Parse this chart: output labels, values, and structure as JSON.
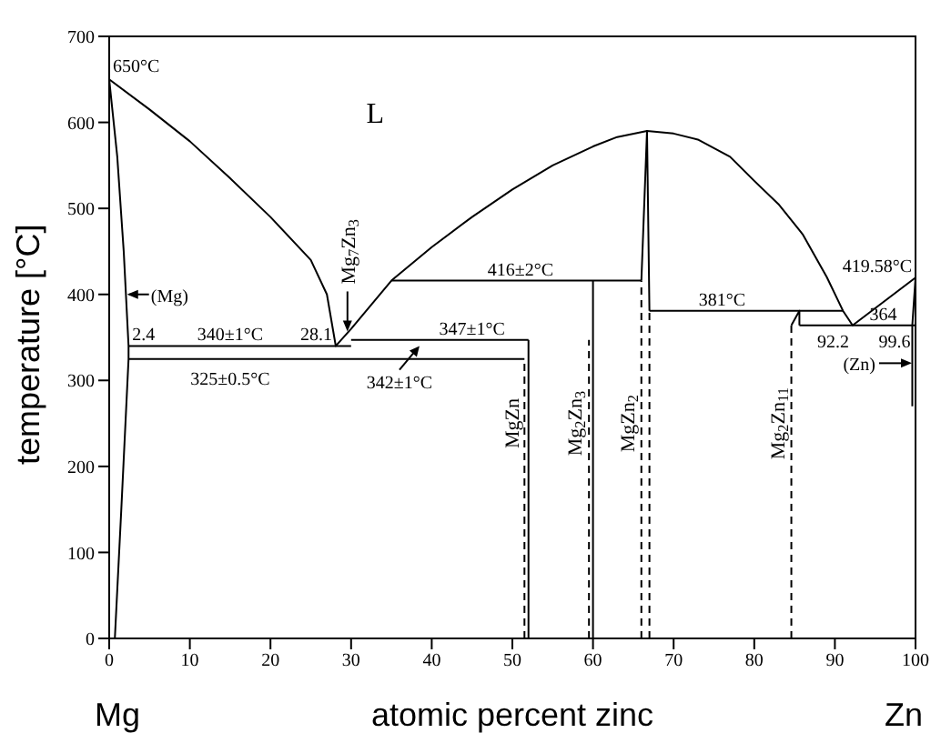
{
  "chart_data": {
    "type": "line",
    "xlabel": "atomic percent zinc",
    "ylabel": "temperature [°C]",
    "xlim": [
      0,
      100
    ],
    "xticks": [
      0,
      10,
      20,
      30,
      40,
      50,
      60,
      70,
      80,
      90,
      100
    ],
    "ylim": [
      0,
      700
    ],
    "yticks": [
      0,
      100,
      200,
      300,
      400,
      500,
      600,
      700
    ],
    "marker": "none",
    "series": [
      {
        "color": "#000000",
        "x": [
          0,
          5,
          10,
          15,
          20,
          25,
          27,
          28.1,
          30,
          35,
          40,
          45,
          50,
          55,
          60,
          63,
          66.7,
          70,
          73,
          77,
          80,
          83,
          86,
          89,
          91,
          92.2,
          100
        ],
        "values": [
          650,
          615,
          578,
          535,
          490,
          440,
          400,
          340,
          360,
          416,
          455,
          490,
          522,
          550,
          572,
          583,
          590,
          587,
          580,
          560,
          532,
          505,
          470,
          420,
          381,
          364,
          419.58
        ]
      },
      {
        "color": "#000000",
        "x": [
          0,
          1,
          1.8,
          2.4,
          2.4,
          1.5,
          0.7
        ],
        "values": [
          650,
          560,
          450,
          340,
          325,
          150,
          0
        ]
      },
      {
        "color": "#000000",
        "x": [
          2.4,
          30
        ],
        "values": [
          340,
          340
        ]
      },
      {
        "color": "#000000",
        "x": [
          2.4,
          51.5
        ],
        "values": [
          325,
          325
        ]
      },
      {
        "color": "#000000",
        "x": [
          30,
          52
        ],
        "values": [
          347,
          347
        ]
      },
      {
        "color": "#000000",
        "x": [
          35,
          66
        ],
        "values": [
          416,
          416
        ]
      },
      {
        "color": "#000000",
        "x": [
          67,
          91
        ],
        "values": [
          381,
          381
        ]
      },
      {
        "color": "#000000",
        "x": [
          85.6,
          100
        ],
        "values": [
          364,
          364
        ]
      },
      {
        "color": "#000000",
        "line_style": "dashed",
        "x": [
          51.5,
          51.5
        ],
        "values": [
          0,
          325
        ]
      },
      {
        "color": "#000000",
        "x": [
          52,
          52
        ],
        "values": [
          0,
          347
        ]
      },
      {
        "color": "#000000",
        "line_style": "dashed",
        "x": [
          59.5,
          59.5
        ],
        "values": [
          0,
          347
        ]
      },
      {
        "color": "#000000",
        "x": [
          60,
          60
        ],
        "values": [
          0,
          416
        ]
      },
      {
        "color": "#000000",
        "line_style": "dashed",
        "x": [
          66,
          66
        ],
        "values": [
          0,
          416
        ]
      },
      {
        "color": "#000000",
        "line_style": "dashed",
        "x": [
          67,
          67
        ],
        "values": [
          0,
          381
        ]
      },
      {
        "color": "#000000",
        "x": [
          66,
          66.7,
          67
        ],
        "values": [
          416,
          590,
          381
        ]
      },
      {
        "color": "#000000",
        "line_style": "dashed",
        "x": [
          84.6,
          84.6
        ],
        "values": [
          0,
          364
        ]
      },
      {
        "color": "#000000",
        "x": [
          84.6,
          85.6,
          85.6
        ],
        "values": [
          364,
          381,
          364
        ]
      },
      {
        "color": "#000000",
        "x": [
          99.6,
          99.6,
          100
        ],
        "values": [
          270,
          364,
          419.58
        ]
      }
    ],
    "annotations": [
      {
        "text": "650°C",
        "x": 0,
        "y": 650
      },
      {
        "text": "(Mg)",
        "x": 2,
        "y": 400
      },
      {
        "text": "2.4",
        "x": 2.4,
        "y": 340
      },
      {
        "text": "340±1°C",
        "x": 15,
        "y": 340
      },
      {
        "text": "28.1",
        "x": 28.1,
        "y": 340
      },
      {
        "text": "325±0.5°C",
        "x": 15,
        "y": 325
      },
      {
        "text": "342±1°C",
        "x": 36,
        "y": 342
      },
      {
        "text": "347±1°C",
        "x": 45,
        "y": 347
      },
      {
        "text": "416±2°C",
        "x": 51,
        "y": 416
      },
      {
        "text": "381°C",
        "x": 76,
        "y": 381
      },
      {
        "text": "419.58°C",
        "x": 100,
        "y": 419.58
      },
      {
        "text": "364",
        "x": 96,
        "y": 364
      },
      {
        "text": "92.2",
        "x": 92.2,
        "y": 364
      },
      {
        "text": "99.6",
        "x": 99.6,
        "y": 364
      },
      {
        "text": "(Zn)",
        "x": 100,
        "y": 320
      },
      "Mg$_{7}$Zn$_{3}$",
      {
        "text": "MgZn",
        "x": 51.5,
        "y": 250
      },
      {
        "text": "Mg$_{2}$Zn$_{3}$",
        "x": 59.5,
        "y": 250
      },
      {
        "text": "MgZn$_{2}$",
        "x": 66,
        "y": 250
      },
      {
        "text": "Mg$_{2}$Zn$_{11}$",
        "x": 84.6,
        "y": 250
      },
      "L",
      "Mg",
      "Zn"
    ]
  }
}
